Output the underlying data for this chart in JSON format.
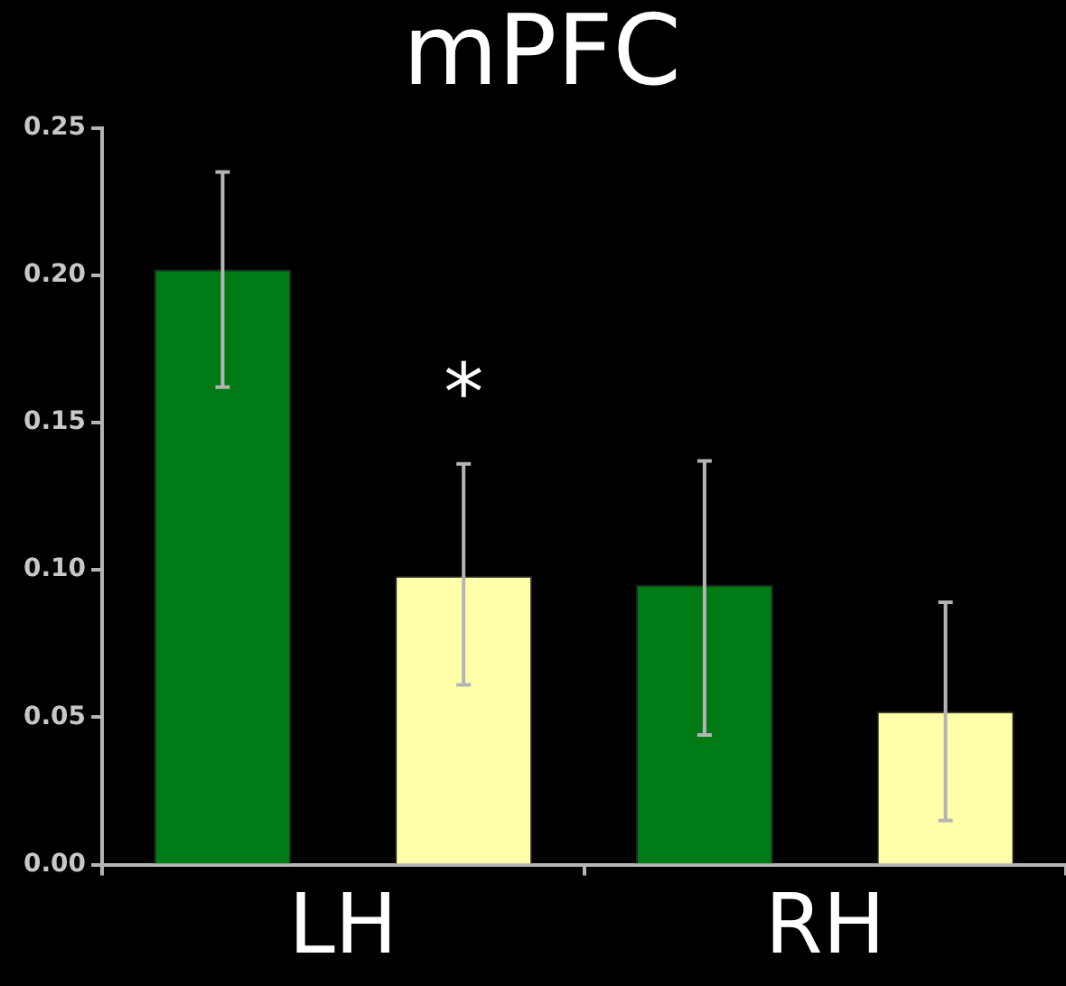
{
  "chart_data": {
    "type": "bar",
    "title": "mPFC",
    "categories": [
      "LH",
      "RH"
    ],
    "series": [
      {
        "color": "#007a14",
        "values": [
          0.202,
          0.095
        ],
        "errors": [
          [
            0.162,
            0.235
          ],
          [
            0.044,
            0.137
          ]
        ]
      },
      {
        "color": "#ffffaa",
        "values": [
          0.098,
          0.052
        ],
        "errors": [
          [
            0.061,
            0.136
          ],
          [
            0.015,
            0.089
          ]
        ]
      }
    ],
    "ylim": [
      0,
      0.25
    ],
    "yticks": [
      {
        "value": 0,
        "label": "0.00"
      },
      {
        "value": 0.05,
        "label": "0.05"
      },
      {
        "value": 0.1,
        "label": "0.10"
      },
      {
        "value": 0.15,
        "label": "0.15"
      },
      {
        "value": 0.2,
        "label": "0.20"
      },
      {
        "value": 0.25,
        "label": "0.25"
      }
    ],
    "grid": false,
    "legend": false,
    "annotations": [
      "*"
    ]
  }
}
